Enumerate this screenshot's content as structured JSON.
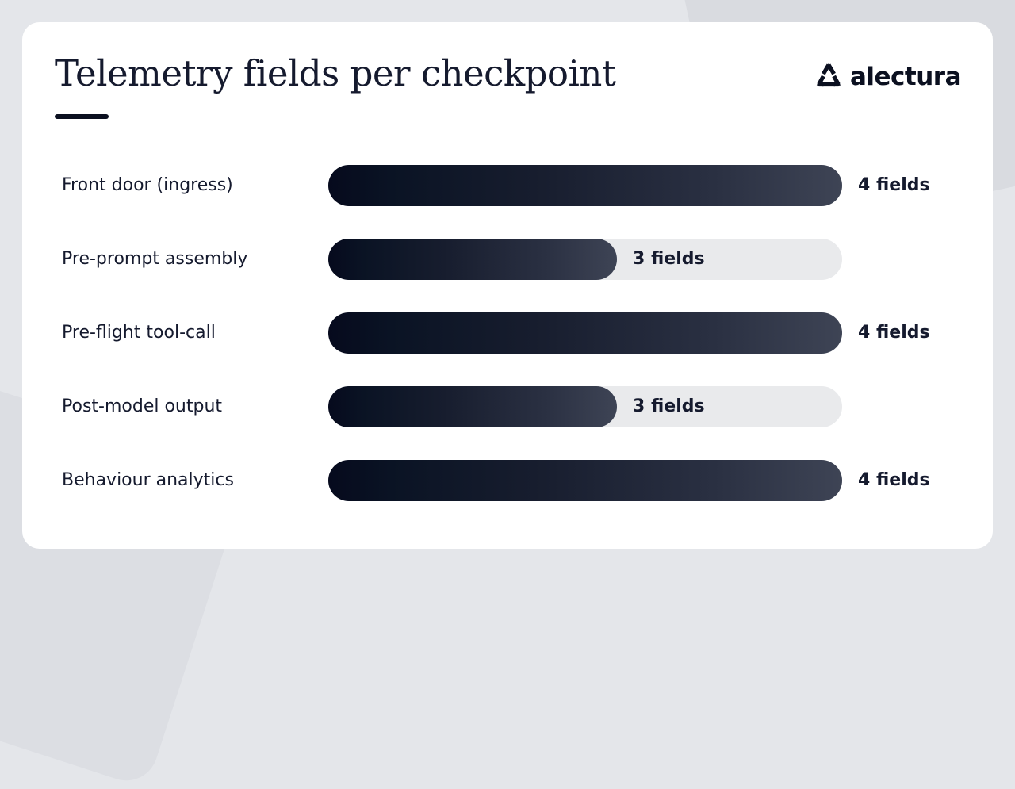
{
  "title": "Telemetry fields per checkpoint",
  "logo": {
    "text": "alectura",
    "icon": "recycle-triangle-icon"
  },
  "colors": {
    "bar_dark": "#060a1d",
    "bar_light": "#3e4455",
    "track": "#e9eaec",
    "text": "#151a2e"
  },
  "chart_data": {
    "type": "bar",
    "orientation": "horizontal",
    "title": "Telemetry fields per checkpoint",
    "categories": [
      "Front door (ingress)",
      "Pre-prompt assembly",
      "Pre-flight tool-call",
      "Post-model output",
      "Behaviour analytics"
    ],
    "values": [
      4,
      3,
      4,
      3,
      4
    ],
    "value_labels": [
      "4 fields",
      "3 fields",
      "4 fields",
      "3 fields",
      "4 fields"
    ],
    "xlim": [
      0,
      4.5
    ],
    "grid": false,
    "legend": "none"
  }
}
